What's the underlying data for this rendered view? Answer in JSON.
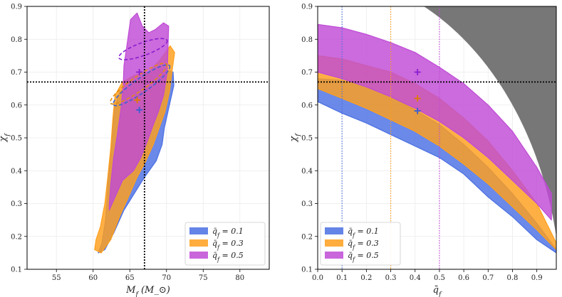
{
  "chart_data": [
    {
      "type": "contour",
      "panel": "left",
      "xlabel": "M_f (M_⊙)",
      "ylabel": "χ_f",
      "xlim": [
        51,
        84
      ],
      "ylim": [
        0.1,
        0.9
      ],
      "xticks": [
        55,
        60,
        65,
        70,
        75,
        80
      ],
      "yticks": [
        0.1,
        0.2,
        0.3,
        0.4,
        0.5,
        0.6,
        0.7,
        0.8,
        0.9
      ],
      "grid": true,
      "reference_lines": {
        "vertical_x": 67,
        "horizontal_y": 0.67,
        "style": "dotted black"
      },
      "legend_position": "lower-right",
      "series": [
        {
          "name": "q̄_f = 0.1",
          "color": "#4a6fe3",
          "marker": [
            66.3,
            0.585
          ],
          "region": [
            [
              60.7,
              0.15
            ],
            [
              61.6,
              0.16
            ],
            [
              62.8,
              0.21
            ],
            [
              64.2,
              0.28
            ],
            [
              65.6,
              0.33
            ],
            [
              67.0,
              0.38
            ],
            [
              68.6,
              0.43
            ],
            [
              69.4,
              0.48
            ],
            [
              69.7,
              0.53
            ],
            [
              70.4,
              0.6
            ],
            [
              71.0,
              0.66
            ],
            [
              70.9,
              0.7
            ],
            [
              69.4,
              0.71
            ],
            [
              67.6,
              0.7
            ],
            [
              65.7,
              0.67
            ],
            [
              63.6,
              0.64
            ],
            [
              62.9,
              0.59
            ],
            [
              62.7,
              0.53
            ],
            [
              62.4,
              0.46
            ],
            [
              62.1,
              0.39
            ],
            [
              61.9,
              0.32
            ],
            [
              61.7,
              0.25
            ],
            [
              61.2,
              0.18
            ]
          ],
          "ellipse": {
            "center": [
              66.6,
              0.66
            ],
            "orientation_deg": 35,
            "style": "dashed"
          }
        },
        {
          "name": "q̄_f = 0.3",
          "color": "#ff9f1c",
          "marker": [
            66.0,
            0.615
          ],
          "region": [
            [
              60.2,
              0.16
            ],
            [
              61.1,
              0.15
            ],
            [
              62.4,
              0.19
            ],
            [
              63.6,
              0.26
            ],
            [
              64.8,
              0.32
            ],
            [
              66.0,
              0.38
            ],
            [
              67.2,
              0.43
            ],
            [
              68.2,
              0.48
            ],
            [
              69.0,
              0.53
            ],
            [
              69.8,
              0.58
            ],
            [
              70.4,
              0.64
            ],
            [
              70.8,
              0.71
            ],
            [
              71.1,
              0.76
            ],
            [
              70.5,
              0.78
            ],
            [
              69.2,
              0.74
            ],
            [
              67.6,
              0.7
            ],
            [
              65.6,
              0.69
            ],
            [
              64.0,
              0.67
            ],
            [
              63.0,
              0.63
            ],
            [
              62.7,
              0.56
            ],
            [
              62.4,
              0.47
            ],
            [
              62.0,
              0.38
            ],
            [
              61.6,
              0.3
            ],
            [
              61.0,
              0.23
            ],
            [
              60.4,
              0.19
            ]
          ],
          "ellipse": {
            "center": [
              66.2,
              0.665
            ],
            "orientation_deg": 35,
            "style": "dashed"
          }
        },
        {
          "name": "q̄_f = 0.5",
          "color": "#c04bd6",
          "marker": [
            66.3,
            0.7
          ],
          "region": [
            [
              62.2,
              0.28
            ],
            [
              63.0,
              0.32
            ],
            [
              64.0,
              0.37
            ],
            [
              65.5,
              0.4
            ],
            [
              66.5,
              0.44
            ],
            [
              67.4,
              0.49
            ],
            [
              68.2,
              0.54
            ],
            [
              68.9,
              0.58
            ],
            [
              69.6,
              0.63
            ],
            [
              70.1,
              0.7
            ],
            [
              70.2,
              0.77
            ],
            [
              70.3,
              0.84
            ],
            [
              69.6,
              0.85
            ],
            [
              68.5,
              0.83
            ],
            [
              67.6,
              0.82
            ],
            [
              66.7,
              0.84
            ],
            [
              66.0,
              0.88
            ],
            [
              65.1,
              0.86
            ],
            [
              64.6,
              0.78
            ],
            [
              64.2,
              0.72
            ],
            [
              64.1,
              0.66
            ],
            [
              63.8,
              0.59
            ],
            [
              63.3,
              0.51
            ],
            [
              62.8,
              0.44
            ],
            [
              62.4,
              0.36
            ],
            [
              62.2,
              0.3
            ]
          ],
          "ellipse": {
            "center": [
              66.8,
              0.77
            ],
            "orientation_deg": 20,
            "style": "dashed"
          }
        }
      ]
    },
    {
      "type": "band",
      "panel": "right",
      "xlabel": "q̄_f",
      "ylabel": "χ_f",
      "xlim": [
        0.0,
        0.98
      ],
      "ylim": [
        0.1,
        0.9
      ],
      "xticks": [
        0.0,
        0.1,
        0.2,
        0.3,
        0.4,
        0.5,
        0.6,
        0.7,
        0.8,
        0.9
      ],
      "yticks": [
        0.1,
        0.2,
        0.3,
        0.4,
        0.5,
        0.6,
        0.7,
        0.8,
        0.9
      ],
      "grid": true,
      "reference_lines": {
        "horizontal_y": 0.67,
        "style": "dotted black"
      },
      "excluded_region": "gray area where chi_f^2 + q_f^2 > 1",
      "legend_position": "lower-left",
      "series": [
        {
          "name": "q̄_f = 0.1",
          "color": "#4a6fe3",
          "vline": 0.1,
          "marker": [
            0.41,
            0.582
          ],
          "upper": [
            [
              0.0,
              0.68
            ],
            [
              0.1,
              0.675
            ],
            [
              0.2,
              0.655
            ],
            [
              0.3,
              0.625
            ],
            [
              0.4,
              0.585
            ],
            [
              0.5,
              0.54
            ],
            [
              0.6,
              0.48
            ],
            [
              0.7,
              0.41
            ],
            [
              0.8,
              0.33
            ],
            [
              0.9,
              0.24
            ],
            [
              0.98,
              0.16
            ]
          ],
          "lower": [
            [
              0.0,
              0.61
            ],
            [
              0.1,
              0.575
            ],
            [
              0.2,
              0.545
            ],
            [
              0.3,
              0.51
            ],
            [
              0.4,
              0.475
            ],
            [
              0.5,
              0.44
            ],
            [
              0.6,
              0.39
            ],
            [
              0.7,
              0.32
            ],
            [
              0.8,
              0.26
            ],
            [
              0.9,
              0.19
            ],
            [
              0.98,
              0.15
            ]
          ]
        },
        {
          "name": "q̄_f = 0.3",
          "color": "#ff9f1c",
          "vline": 0.3,
          "marker": [
            0.41,
            0.62
          ],
          "upper": [
            [
              0.0,
              0.75
            ],
            [
              0.1,
              0.74
            ],
            [
              0.2,
              0.72
            ],
            [
              0.3,
              0.7
            ],
            [
              0.4,
              0.665
            ],
            [
              0.5,
              0.62
            ],
            [
              0.6,
              0.56
            ],
            [
              0.7,
              0.49
            ],
            [
              0.8,
              0.4
            ],
            [
              0.9,
              0.3
            ],
            [
              0.98,
              0.18
            ]
          ],
          "lower": [
            [
              0.0,
              0.65
            ],
            [
              0.1,
              0.62
            ],
            [
              0.2,
              0.59
            ],
            [
              0.3,
              0.555
            ],
            [
              0.4,
              0.52
            ],
            [
              0.5,
              0.475
            ],
            [
              0.6,
              0.42
            ],
            [
              0.7,
              0.36
            ],
            [
              0.8,
              0.29
            ],
            [
              0.9,
              0.22
            ],
            [
              0.98,
              0.16
            ]
          ]
        },
        {
          "name": "q̄_f = 0.5",
          "color": "#c04bd6",
          "vline": 0.5,
          "marker": [
            0.41,
            0.7
          ],
          "upper": [
            [
              0.0,
              0.845
            ],
            [
              0.1,
              0.835
            ],
            [
              0.2,
              0.815
            ],
            [
              0.3,
              0.79
            ],
            [
              0.4,
              0.76
            ],
            [
              0.5,
              0.715
            ],
            [
              0.6,
              0.665
            ],
            [
              0.7,
              0.6
            ],
            [
              0.8,
              0.52
            ],
            [
              0.9,
              0.41
            ],
            [
              0.96,
              0.33
            ]
          ],
          "lower": [
            [
              0.0,
              0.7
            ],
            [
              0.1,
              0.68
            ],
            [
              0.2,
              0.655
            ],
            [
              0.3,
              0.625
            ],
            [
              0.4,
              0.59
            ],
            [
              0.5,
              0.55
            ],
            [
              0.6,
              0.5
            ],
            [
              0.7,
              0.44
            ],
            [
              0.8,
              0.37
            ],
            [
              0.9,
              0.3
            ],
            [
              0.96,
              0.25
            ]
          ]
        }
      ]
    }
  ]
}
